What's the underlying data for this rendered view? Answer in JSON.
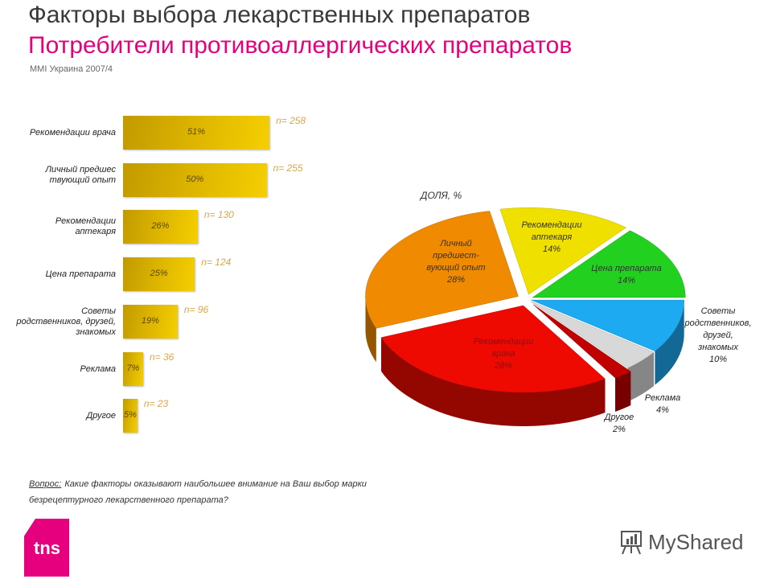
{
  "header": {
    "title": "Факторы выбора лекарственных препаратов",
    "subtitle": "Потребители противоаллергических препаратов",
    "source": "MMI Украина 2007/4"
  },
  "chart_data": [
    {
      "type": "bar",
      "orientation": "horizontal",
      "categories": [
        "Рекомендации врача",
        "Личный предшес твующий опыт",
        "Рекомендации аптекаря",
        "Цена препарата",
        "Советы родственников, друзей, знакомых",
        "Реклама",
        "Другое"
      ],
      "values": [
        51,
        50,
        26,
        25,
        19,
        7,
        5
      ],
      "value_labels": [
        "51%",
        "50%",
        "26%",
        "25%",
        "19%",
        "7%",
        "5%"
      ],
      "n_labels": [
        "n= 258",
        "n= 255",
        "n= 130",
        "n= 124",
        "n= 96",
        "n= 36",
        "n= 23"
      ],
      "bar_color": "#e0b800",
      "n_label_color": "#d9a64a"
    },
    {
      "type": "pie",
      "style": "3d-exploded",
      "title": "ДОЛЯ, %",
      "slices": [
        {
          "label": "Советы родственников, друзей, знакомых",
          "value": 10,
          "value_label": "10%",
          "color": "#1eaaf0"
        },
        {
          "label": "Реклама",
          "value": 4,
          "value_label": "4%",
          "color": "#d8d8d8"
        },
        {
          "label": "Другое",
          "value": 2,
          "value_label": "2%",
          "color": "#c00000"
        },
        {
          "label": "Рекомендации врача",
          "value": 28,
          "value_label": "28%",
          "color": "#ee0a00"
        },
        {
          "label": "Личный предшест-вующий опыт",
          "value": 28,
          "value_label": "28%",
          "color": "#f08a00"
        },
        {
          "label": "Рекомендации аптекаря",
          "value": 14,
          "value_label": "14%",
          "color": "#f0e000"
        },
        {
          "label": "Цена препарата",
          "value": 14,
          "value_label": "14%",
          "color": "#22d020"
        }
      ]
    }
  ],
  "footer": {
    "question_label": "Вопрос:",
    "question_text": "Какие факторы оказывают наибольшее внимание на Ваш выбор марки безрецептурного лекарственного препарата?",
    "logo_text": "tns",
    "watermark": "MyShared"
  }
}
